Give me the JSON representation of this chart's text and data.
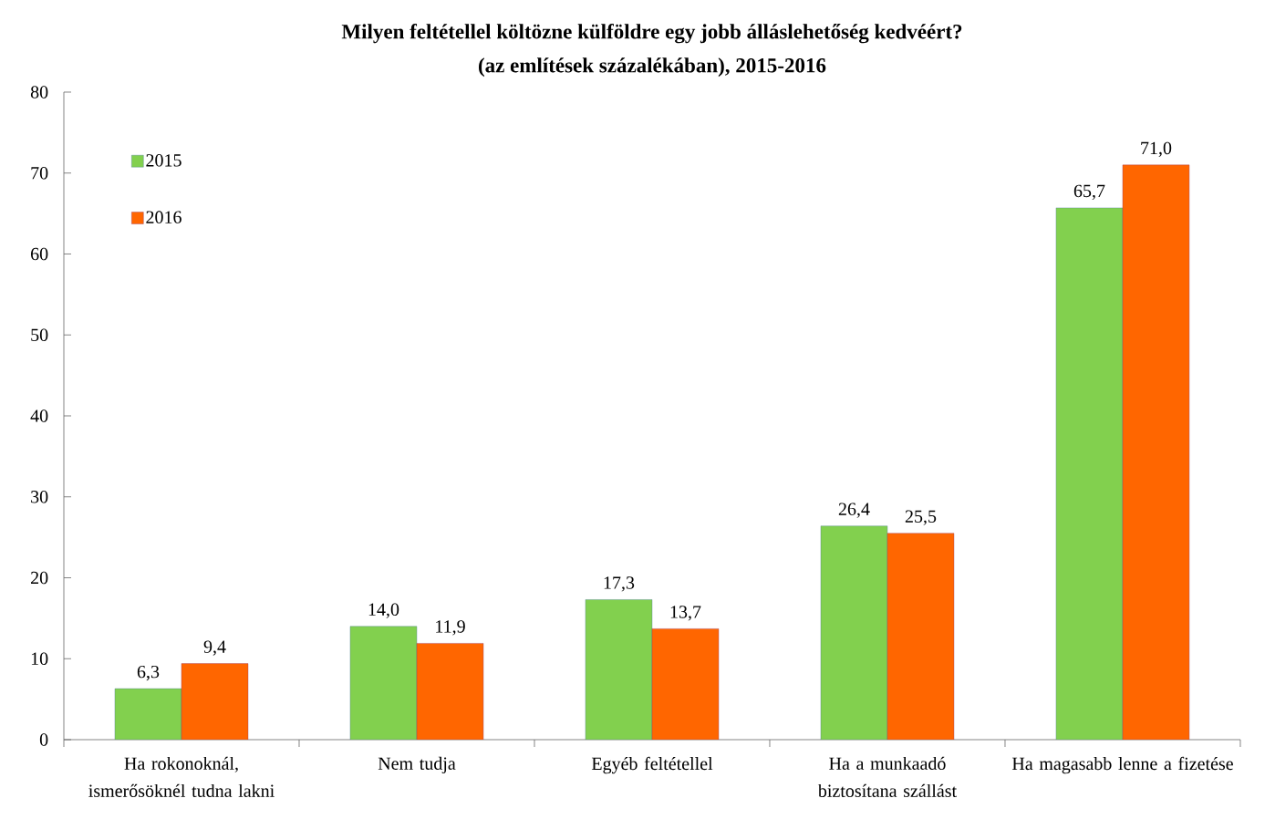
{
  "chart_data": {
    "type": "bar",
    "title": "Milyen feltétellel költözne külföldre egy jobb álláslehetőség kedvéért?",
    "subtitle": "(az említések százalékában), 2015-2016",
    "categories": [
      "Ha rokonoknál, ismerősöknél tudna lakni",
      "Nem tudja",
      "Egyéb feltétellel",
      "Ha a munkaadó biztosítana szállást",
      "Ha magasabb lenne a fizetése"
    ],
    "series": [
      {
        "name": "2015",
        "color": "#82d04e",
        "values": [
          6.3,
          14.0,
          17.3,
          26.4,
          65.7
        ],
        "value_labels": [
          "6,3",
          "14,0",
          "17,3",
          "26,4",
          "65,7"
        ]
      },
      {
        "name": "2016",
        "color": "#ff6600",
        "values": [
          9.4,
          11.9,
          13.7,
          25.5,
          71.0
        ],
        "value_labels": [
          "9,4",
          "11,9",
          "13,7",
          "25,5",
          "71,0"
        ]
      }
    ],
    "ylim": [
      0,
      80
    ],
    "yticks": [
      0,
      10,
      20,
      30,
      40,
      50,
      60,
      70,
      80
    ],
    "legend": "top left",
    "grid": false
  }
}
